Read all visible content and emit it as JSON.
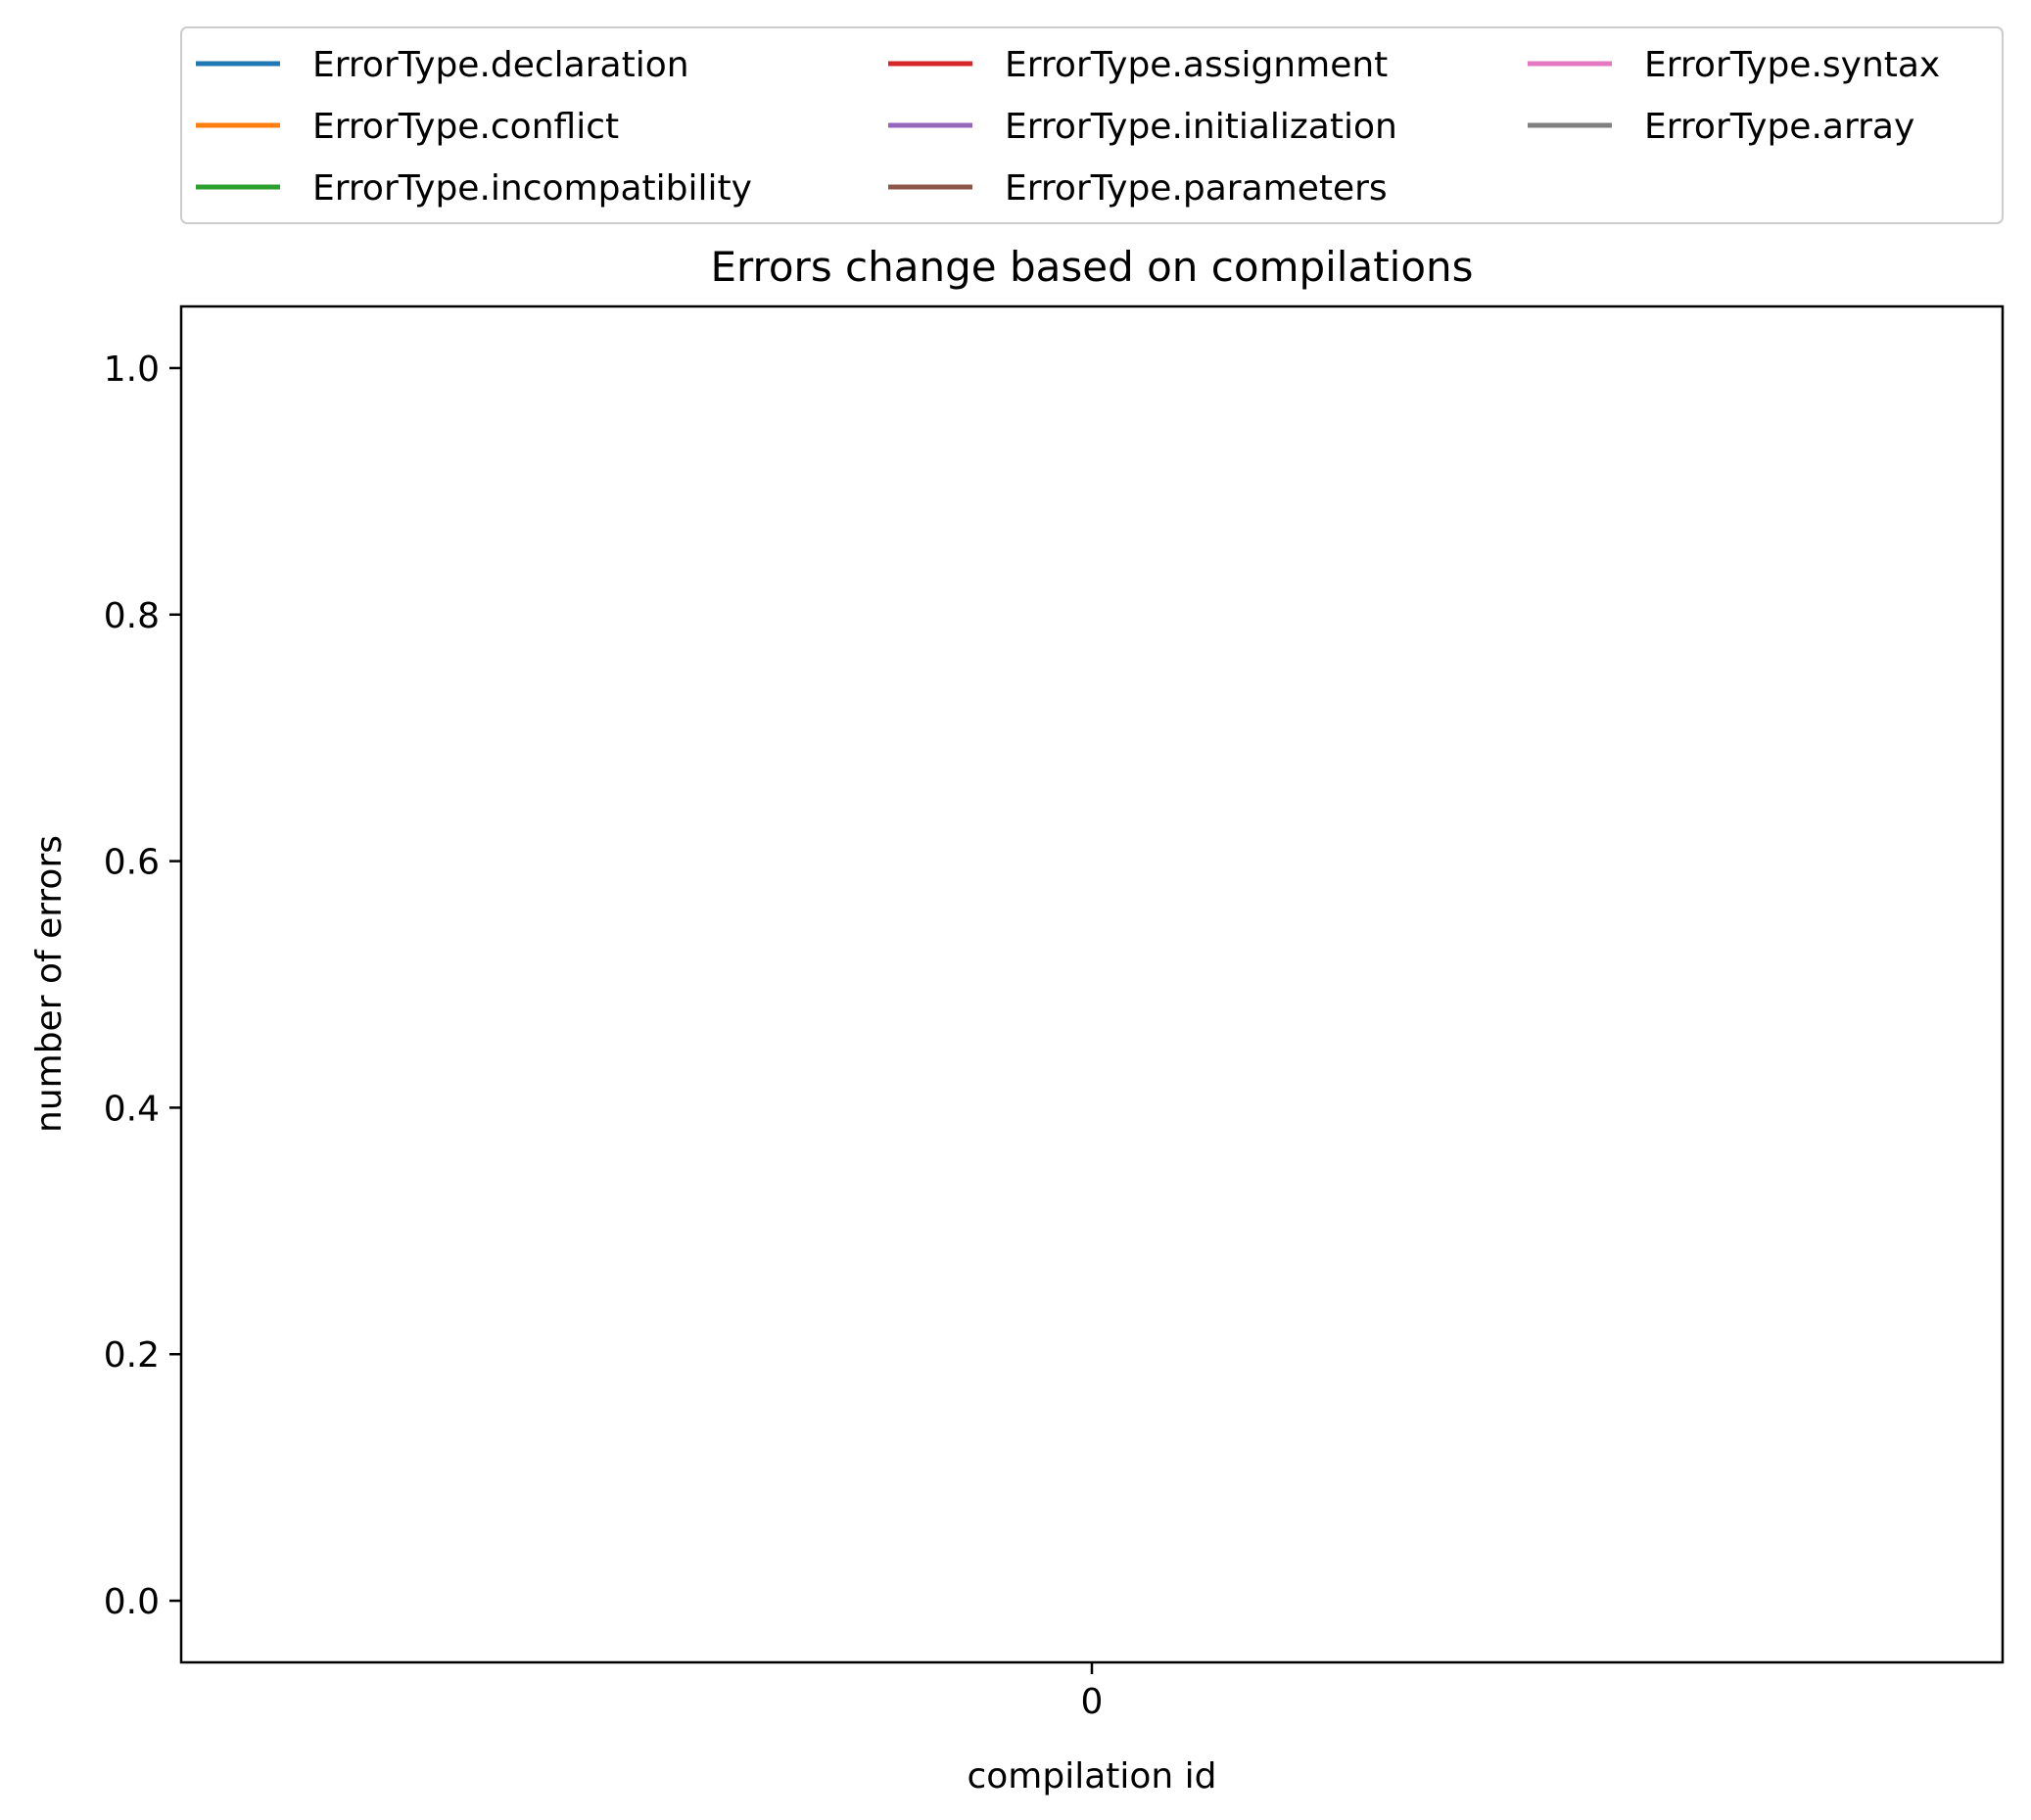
{
  "chart_data": {
    "type": "line",
    "title": "Errors change based on compilations",
    "xlabel": "compilation id",
    "ylabel": "number of errors",
    "x": [
      0
    ],
    "xticks": [
      0
    ],
    "xtick_labels": [
      "0"
    ],
    "xlim": [
      -0.055,
      0.055
    ],
    "ylim": [
      -0.05,
      1.05
    ],
    "yticks": [
      0.0,
      0.2,
      0.4,
      0.6,
      0.8,
      1.0
    ],
    "ytick_labels": [
      "0.0",
      "0.2",
      "0.4",
      "0.6",
      "0.8",
      "1.0"
    ],
    "grid": false,
    "legend_position": "top, above plot, 3 columns",
    "series": [
      {
        "name": "ErrorType.declaration",
        "color": "#1f77b4",
        "values": [
          0
        ]
      },
      {
        "name": "ErrorType.conflict",
        "color": "#ff7f0e",
        "values": [
          0
        ]
      },
      {
        "name": "ErrorType.incompatibility",
        "color": "#2ca02c",
        "values": [
          0
        ]
      },
      {
        "name": "ErrorType.assignment",
        "color": "#d62728",
        "values": [
          0
        ]
      },
      {
        "name": "ErrorType.initialization",
        "color": "#9467bd",
        "values": [
          0
        ]
      },
      {
        "name": "ErrorType.parameters",
        "color": "#8c564b",
        "values": [
          0
        ]
      },
      {
        "name": "ErrorType.syntax",
        "color": "#e377c2",
        "values": [
          0
        ]
      },
      {
        "name": "ErrorType.array",
        "color": "#7f7f7f",
        "values": [
          0
        ]
      }
    ]
  }
}
